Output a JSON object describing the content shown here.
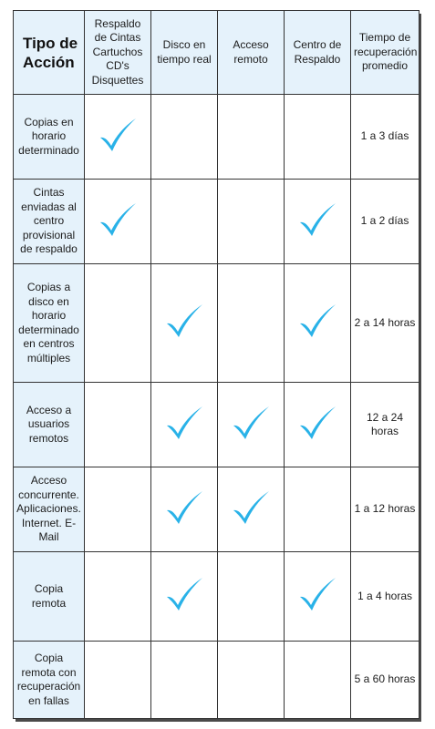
{
  "header": {
    "title_line1": "Tipo de",
    "title_line2": "Acción",
    "columns": [
      "Respaldo de Cintas Cartuchos CD's Disquettes",
      "Disco en tiempo real",
      "Acceso remoto",
      "Centro de Respaldo",
      "Tiempo de recuperación promedio"
    ]
  },
  "rows": [
    {
      "action": "Copias en horario determinado",
      "checks": [
        true,
        false,
        false,
        false
      ],
      "time": "1 a 3 días"
    },
    {
      "action": "Cintas enviadas al centro provisional de respaldo",
      "checks": [
        true,
        false,
        false,
        true
      ],
      "time": "1 a 2 días"
    },
    {
      "action": "Copias a disco en horario determinado en centros múltiples",
      "checks": [
        false,
        true,
        false,
        true
      ],
      "time": "2 a 14 horas"
    },
    {
      "action": "Acceso a usuarios remotos",
      "checks": [
        false,
        true,
        true,
        true
      ],
      "time": "12 a 24 horas"
    },
    {
      "action": "Acceso concurrente. Aplicaciones. Internet. E-Mail",
      "checks": [
        false,
        true,
        true,
        false
      ],
      "time": "1 a 12 horas"
    },
    {
      "action": "Copia remota",
      "checks": [
        false,
        true,
        false,
        true
      ],
      "time": "1 a 4 horas"
    },
    {
      "action": "Copia remota con recuperación en fallas",
      "checks": [
        false,
        false,
        false,
        false
      ],
      "time": "5 a 60 horas"
    }
  ],
  "colors": {
    "check": "#29b2e8",
    "header_bg": "#e5f2fb",
    "border": "#333333"
  },
  "icons": {
    "check": "checkmark-icon"
  }
}
